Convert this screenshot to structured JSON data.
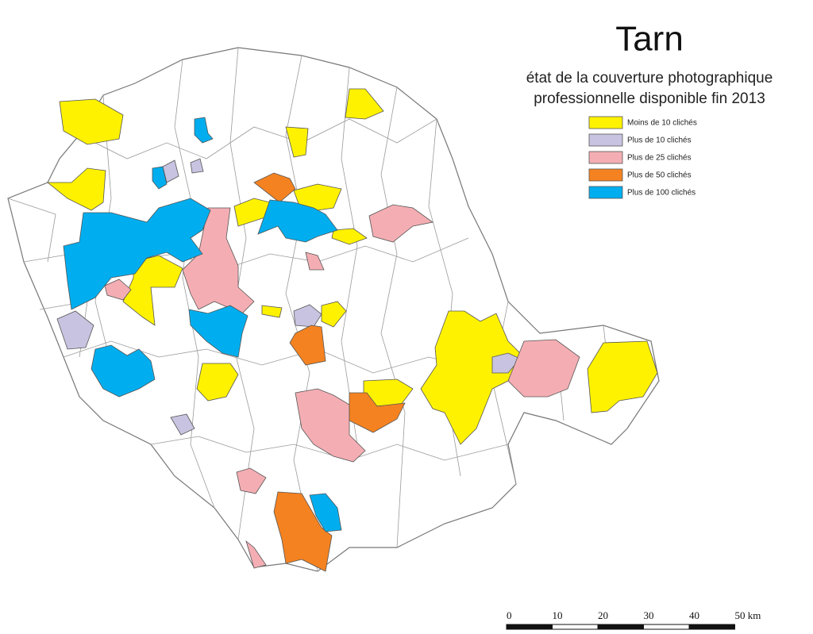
{
  "title": "Tarn",
  "subtitle": [
    "état de la couverture photographique",
    "professionnelle disponible fin 2013"
  ],
  "legend": [
    {
      "label": "Moins de 10 clichés",
      "color": "#fff200"
    },
    {
      "label": "Plus de 10 clichés",
      "color": "#c8c3e0"
    },
    {
      "label": "Plus de 25 clichés",
      "color": "#f4aeb3"
    },
    {
      "label": "Plus de 50 clichés",
      "color": "#f58220"
    },
    {
      "label": "Plus de 100 clichés",
      "color": "#00aeef"
    }
  ],
  "scale_bar": {
    "labels": [
      "0",
      "10",
      "20",
      "30",
      "40",
      "50 km"
    ]
  }
}
